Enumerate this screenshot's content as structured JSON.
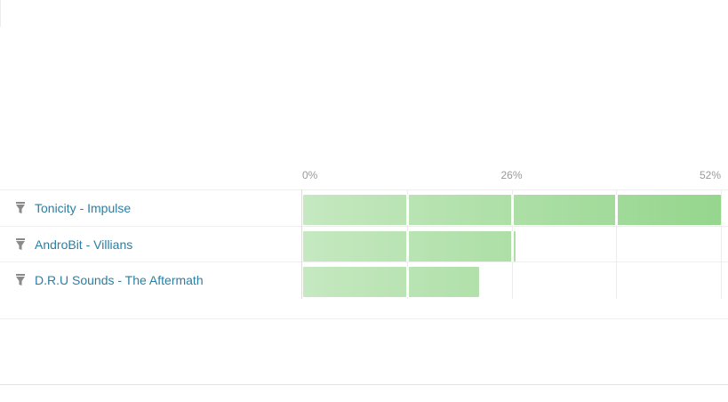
{
  "chart_data": {
    "type": "bar",
    "orientation": "horizontal",
    "categories": [
      "Tonicity - Impulse",
      "AndroBit - Villians",
      "D.R.U Sounds - The Aftermath"
    ],
    "values": [
      52,
      26.5,
      22
    ],
    "unit": "%",
    "xlim": [
      0,
      52
    ],
    "ticks": [
      "0%",
      "26%",
      "52%"
    ],
    "tick_values": [
      0,
      26,
      52
    ],
    "grid": true,
    "legend": "none",
    "colors": {
      "bar_light": "#c5e8c0",
      "bar_dark": "#95d68d",
      "label": "#2a7fa3",
      "tick": "#9a9a9a"
    }
  },
  "icons": {
    "row_icon": "filter-icon"
  }
}
